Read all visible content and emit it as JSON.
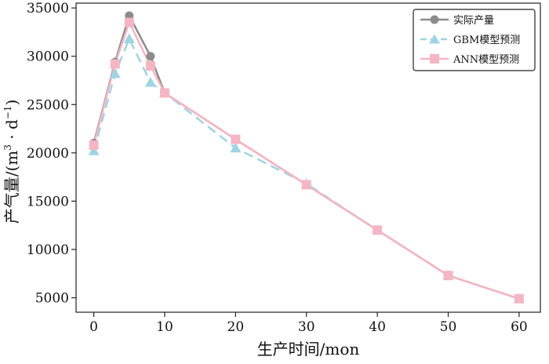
{
  "chart_data": {
    "type": "line",
    "xlabel": "生产时间/mon",
    "ylabel_main": "产气量/(m",
    "ylabel_sup1": "3",
    "ylabel_mid": " · d",
    "ylabel_sup2": "−1",
    "ylabel_end": ")",
    "xlim": [
      -2.5,
      63
    ],
    "ylim": [
      3500,
      35500
    ],
    "xticks": [
      0,
      10,
      20,
      30,
      40,
      50,
      60
    ],
    "yticks": [
      5000,
      10000,
      15000,
      20000,
      25000,
      30000,
      35000
    ],
    "grid": false,
    "legend_position": "top-right",
    "x": [
      0,
      3,
      5,
      8,
      10,
      20,
      30,
      40,
      50,
      60
    ],
    "series": [
      {
        "name": "实际产量",
        "marker": "circle",
        "dash": "solid",
        "color": "#8c8c8c",
        "values": [
          21000,
          29400,
          34200,
          30000,
          26200,
          21400,
          16700,
          12000,
          7300,
          4900
        ]
      },
      {
        "name": "GBM模型预测",
        "marker": "triangle",
        "dash": "dashed",
        "color": "#9fd3e3",
        "values": [
          20200,
          28200,
          31800,
          27300,
          26200,
          20500,
          16800,
          12000,
          7300,
          4900
        ]
      },
      {
        "name": "ANN模型预测",
        "marker": "square",
        "dash": "solid",
        "color": "#f4b6c4",
        "values": [
          20800,
          29200,
          33500,
          29000,
          26200,
          21400,
          16700,
          12000,
          7300,
          4900
        ]
      }
    ]
  }
}
